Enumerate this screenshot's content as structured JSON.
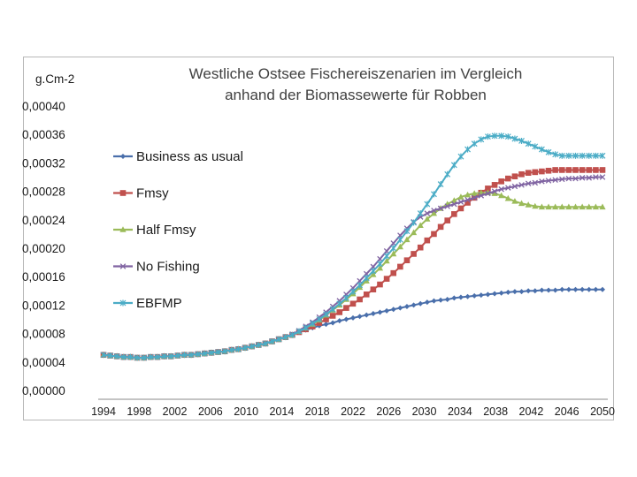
{
  "chart_data": {
    "type": "line",
    "title_line1": "Westliche Ostsee Fischereiszenarien im Vergleich",
    "title_line2": "anhand der Biomassewerte  für Robben",
    "ylabel": "g.Cm-2",
    "xlabel": "",
    "ylim": [
      0,
      0.0004
    ],
    "yticks": [
      "0,00000",
      "0,00004",
      "0,00008",
      "0,00012",
      "0,00016",
      "0,00020",
      "0,00024",
      "0,00028",
      "0,00032",
      "0,00036",
      "0,00040"
    ],
    "xticks": [
      "1994",
      "1998",
      "2002",
      "2006",
      "2010",
      "2014",
      "2018",
      "2022",
      "2026",
      "2030",
      "2034",
      "2038",
      "2042",
      "2046",
      "2050"
    ],
    "x_start": 1994,
    "x_end": 2050,
    "series": [
      {
        "name": "Business as usual",
        "color": "#4a6fab",
        "marker": "diamond",
        "values": [
          5e-05,
          4.9e-05,
          4.8e-05,
          4.7e-05,
          4.7e-05,
          4.6e-05,
          4.6e-05,
          4.7e-05,
          4.7e-05,
          4.8e-05,
          4.8e-05,
          4.9e-05,
          5e-05,
          5e-05,
          5.1e-05,
          5.2e-05,
          5.3e-05,
          5.4e-05,
          5.5e-05,
          5.7e-05,
          5.8e-05,
          6e-05,
          6.2e-05,
          6.4e-05,
          6.6e-05,
          6.9e-05,
          7.2e-05,
          7.5e-05,
          7.8e-05,
          8.2e-05,
          8.5e-05,
          8.8e-05,
          9.1e-05,
          9.3e-05,
          9.5e-05,
          9.8e-05,
          0.0001,
          0.000102,
          0.000104,
          0.000106,
          0.000108,
          0.00011,
          0.000112,
          0.000114,
          0.000116,
          0.000118,
          0.00012,
          0.000122,
          0.000124,
          0.000126,
          0.000127,
          0.000128,
          0.00013,
          0.000131,
          0.000132,
          0.000133,
          0.000134,
          0.000135,
          0.000136,
          0.000137,
          0.000138,
          0.000139,
          0.000139,
          0.00014,
          0.00014,
          0.000141,
          0.000141,
          0.000141,
          0.000142,
          0.000142,
          0.000142,
          0.000142,
          0.000142,
          0.000142,
          0.000142
        ]
      },
      {
        "name": "Fmsy",
        "color": "#c0504d",
        "marker": "square",
        "values": [
          5e-05,
          4.9e-05,
          4.8e-05,
          4.7e-05,
          4.7e-05,
          4.6e-05,
          4.6e-05,
          4.7e-05,
          4.7e-05,
          4.8e-05,
          4.8e-05,
          4.9e-05,
          5e-05,
          5e-05,
          5.1e-05,
          5.2e-05,
          5.3e-05,
          5.4e-05,
          5.5e-05,
          5.7e-05,
          5.8e-05,
          6e-05,
          6.2e-05,
          6.4e-05,
          6.6e-05,
          6.9e-05,
          7.2e-05,
          7.5e-05,
          7.8e-05,
          8.2e-05,
          8.6e-05,
          9e-05,
          9.5e-05,
          0.0001,
          0.000105,
          0.00011,
          0.000116,
          0.000122,
          0.000128,
          0.000135,
          0.000142,
          0.000149,
          0.000157,
          0.000165,
          0.000174,
          0.000183,
          0.000192,
          0.000201,
          0.000211,
          0.00022,
          0.00023,
          0.000239,
          0.000248,
          0.000256,
          0.000264,
          0.000271,
          0.000278,
          0.000284,
          0.000289,
          0.000294,
          0.000298,
          0.000301,
          0.000304,
          0.000306,
          0.000307,
          0.000308,
          0.000309,
          0.00031,
          0.00031,
          0.00031,
          0.00031,
          0.00031,
          0.00031,
          0.00031,
          0.00031
        ]
      },
      {
        "name": "Half Fmsy",
        "color": "#9bbb59",
        "marker": "triangle",
        "values": [
          5e-05,
          4.9e-05,
          4.8e-05,
          4.7e-05,
          4.7e-05,
          4.6e-05,
          4.6e-05,
          4.7e-05,
          4.7e-05,
          4.8e-05,
          4.8e-05,
          4.9e-05,
          5e-05,
          5e-05,
          5.1e-05,
          5.2e-05,
          5.3e-05,
          5.4e-05,
          5.5e-05,
          5.7e-05,
          5.8e-05,
          6e-05,
          6.2e-05,
          6.4e-05,
          6.6e-05,
          6.9e-05,
          7.2e-05,
          7.5e-05,
          7.8e-05,
          8.3e-05,
          8.8e-05,
          9.3e-05,
          9.9e-05,
          0.000106,
          0.000113,
          0.00012,
          0.000128,
          0.000136,
          0.000145,
          0.000154,
          0.000163,
          0.000172,
          0.000182,
          0.000192,
          0.000202,
          0.000212,
          0.000222,
          0.000232,
          0.000241,
          0.000249,
          0.000256,
          0.000262,
          0.000267,
          0.000272,
          0.000275,
          0.000277,
          0.000278,
          0.000278,
          0.000277,
          0.000274,
          0.00027,
          0.000266,
          0.000263,
          0.000261,
          0.000259,
          0.000258,
          0.000258,
          0.000258,
          0.000258,
          0.000258,
          0.000258,
          0.000258,
          0.000258,
          0.000258,
          0.000258
        ]
      },
      {
        "name": "No Fishing",
        "color": "#8064a2",
        "marker": "x",
        "values": [
          5e-05,
          4.9e-05,
          4.8e-05,
          4.7e-05,
          4.7e-05,
          4.6e-05,
          4.6e-05,
          4.7e-05,
          4.7e-05,
          4.8e-05,
          4.8e-05,
          4.9e-05,
          5e-05,
          5e-05,
          5.1e-05,
          5.2e-05,
          5.3e-05,
          5.4e-05,
          5.5e-05,
          5.7e-05,
          5.8e-05,
          6e-05,
          6.2e-05,
          6.4e-05,
          6.6e-05,
          6.9e-05,
          7.2e-05,
          7.5e-05,
          7.9e-05,
          8.4e-05,
          9e-05,
          9.6e-05,
          0.000103,
          0.00011,
          0.000118,
          0.000126,
          0.000135,
          0.000144,
          0.000154,
          0.000164,
          0.000174,
          0.000185,
          0.000196,
          0.000207,
          0.000218,
          0.000228,
          0.000237,
          0.000244,
          0.000249,
          0.000253,
          0.000256,
          0.000259,
          0.000262,
          0.000265,
          0.000268,
          0.000271,
          0.000274,
          0.000277,
          0.00028,
          0.000283,
          0.000285,
          0.000287,
          0.000289,
          0.000291,
          0.000292,
          0.000294,
          0.000295,
          0.000296,
          0.000297,
          0.000298,
          0.000298,
          0.000299,
          0.000299,
          0.0003,
          0.0003
        ]
      },
      {
        "name": "EBFMP",
        "color": "#4bacc6",
        "marker": "asterisk",
        "values": [
          5e-05,
          4.9e-05,
          4.8e-05,
          4.7e-05,
          4.7e-05,
          4.6e-05,
          4.6e-05,
          4.7e-05,
          4.7e-05,
          4.8e-05,
          4.8e-05,
          4.9e-05,
          5e-05,
          5e-05,
          5.1e-05,
          5.2e-05,
          5.3e-05,
          5.4e-05,
          5.5e-05,
          5.7e-05,
          5.8e-05,
          6e-05,
          6.2e-05,
          6.4e-05,
          6.6e-05,
          6.9e-05,
          7.2e-05,
          7.5e-05,
          7.8e-05,
          8.3e-05,
          8.8e-05,
          9.4e-05,
          0.0001,
          0.000107,
          0.000114,
          0.000122,
          0.00013,
          0.000139,
          0.000148,
          0.000158,
          0.000168,
          0.000178,
          0.000189,
          0.0002,
          0.000212,
          0.000224,
          0.000236,
          0.000249,
          0.000262,
          0.000276,
          0.00029,
          0.000304,
          0.000317,
          0.000329,
          0.000339,
          0.000347,
          0.000353,
          0.000357,
          0.000358,
          0.000358,
          0.000357,
          0.000354,
          0.000351,
          0.000347,
          0.000343,
          0.000339,
          0.000335,
          0.000332,
          0.00033,
          0.00033,
          0.00033,
          0.00033,
          0.00033,
          0.00033,
          0.00033
        ]
      }
    ]
  }
}
